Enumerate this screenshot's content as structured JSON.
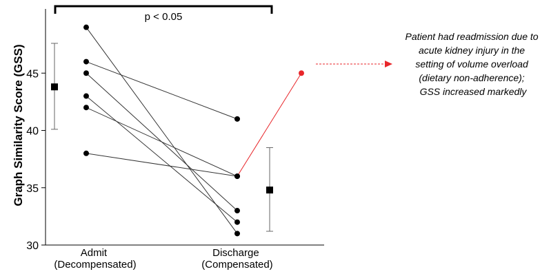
{
  "chart_data": {
    "type": "scatter",
    "ylabel": "Graph Similarity Score (GSS)",
    "ylim": [
      30,
      50
    ],
    "yticks": [
      30,
      35,
      40,
      45
    ],
    "categories": [
      {
        "line1": "Admit",
        "line2": "(Decompensated)"
      },
      {
        "line1": "Discharge",
        "line2": "(Compensated)"
      }
    ],
    "patients": [
      {
        "admit": 49,
        "discharge": 31
      },
      {
        "admit": 46,
        "discharge": 41
      },
      {
        "admit": 45,
        "discharge": 33
      },
      {
        "admit": 43,
        "discharge": 32
      },
      {
        "admit": 42,
        "discharge": 36
      },
      {
        "admit": 38,
        "discharge": 36
      }
    ],
    "readmission": {
      "discharge": 36,
      "readmit": 45,
      "color": "#e8262a"
    },
    "summary": [
      {
        "category": "Admit",
        "mean": 43.8,
        "low": 40.1,
        "high": 47.6
      },
      {
        "category": "Discharge",
        "mean": 34.8,
        "low": 31.2,
        "high": 38.5
      }
    ],
    "significance": "p < 0.05",
    "annotation": [
      "Patient had readmission due to",
      "acute kidney injury in the",
      "setting of volume overload",
      "(dietary non-adherence);",
      "GSS increased markedly"
    ],
    "grid": false,
    "legend": "none"
  }
}
